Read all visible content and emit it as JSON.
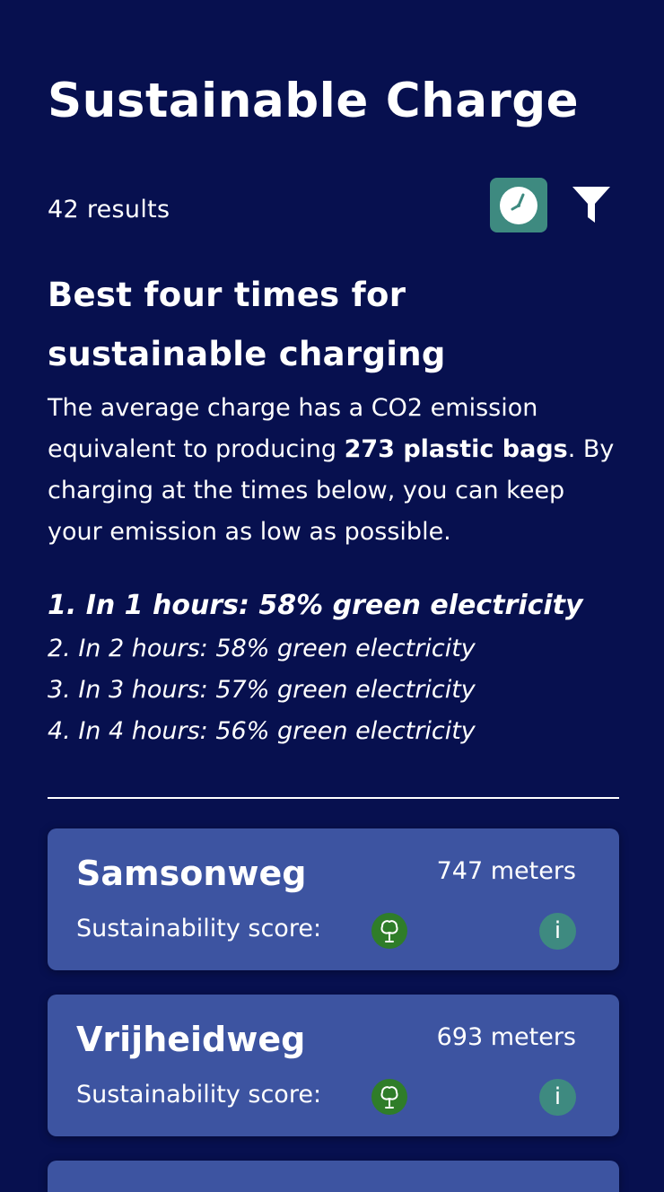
{
  "header": {
    "title": "Sustainable Charge"
  },
  "toolbar": {
    "results_count": "42 results",
    "clock_icon": "clock-icon",
    "filter_icon": "filter-icon"
  },
  "best_times": {
    "heading": "Best four times for sustainable charging",
    "intro_before": "The average charge has a CO2 emission equivalent to producing ",
    "intro_bold": "273 plastic bags",
    "intro_after": ". By charging at the times below, you can keep your emission as low as possible.",
    "items": [
      "1. In 1 hours: 58% green electricity",
      "2. In 2 hours: 58% green electricity",
      "3. In 3 hours: 57% green electricity",
      "4. In 4 hours: 56% green electricity"
    ]
  },
  "stations": [
    {
      "name": "Samsonweg",
      "distance": "747 meters",
      "score_label": "Sustainability score:",
      "score_icon": "tree-icon",
      "info_label": "i"
    },
    {
      "name": "Vrijheidweg",
      "distance": "693 meters",
      "score_label": "Sustainability score:",
      "score_icon": "tree-icon",
      "info_label": "i"
    }
  ],
  "colors": {
    "background": "#07104f",
    "card": "#3d54a1",
    "accent_teal": "#3e8a80",
    "score_green": "#2f7d29"
  }
}
